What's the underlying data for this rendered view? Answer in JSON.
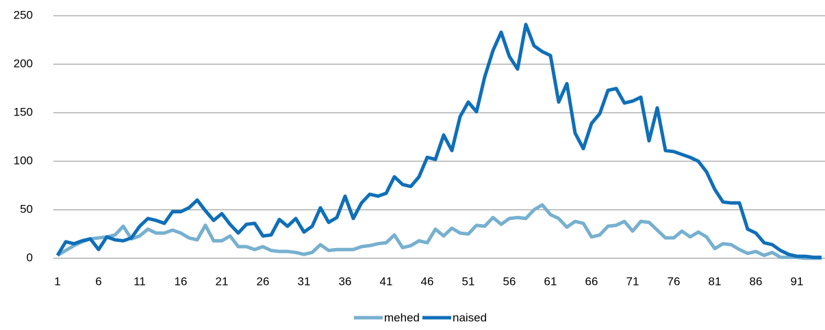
{
  "chart_data": {
    "type": "line",
    "x": [
      1,
      2,
      3,
      4,
      5,
      6,
      7,
      8,
      9,
      10,
      11,
      12,
      13,
      14,
      15,
      16,
      17,
      18,
      19,
      20,
      21,
      22,
      23,
      24,
      25,
      26,
      27,
      28,
      29,
      30,
      31,
      32,
      33,
      34,
      35,
      36,
      37,
      38,
      39,
      40,
      41,
      42,
      43,
      44,
      45,
      46,
      47,
      48,
      49,
      50,
      51,
      52,
      53,
      54,
      55,
      56,
      57,
      58,
      59,
      60,
      61,
      62,
      63,
      64,
      65,
      66,
      67,
      68,
      69,
      70,
      71,
      72,
      73,
      74,
      75,
      76,
      77,
      78,
      79,
      80,
      81,
      82,
      83,
      84,
      85,
      86,
      87,
      88,
      89,
      90,
      91,
      92,
      93,
      94
    ],
    "series": [
      {
        "name": "mehed",
        "color": "#77b0cf",
        "values": [
          3,
          8,
          13,
          17,
          20,
          21,
          22,
          24,
          33,
          20,
          23,
          30,
          26,
          26,
          29,
          26,
          21,
          19,
          34,
          18,
          18,
          23,
          12,
          12,
          9,
          12,
          8,
          7,
          7,
          6,
          4,
          6,
          14,
          8,
          9,
          9,
          9,
          12,
          13,
          15,
          16,
          24,
          11,
          13,
          18,
          16,
          30,
          23,
          31,
          26,
          25,
          34,
          33,
          42,
          35,
          41,
          42,
          41,
          50,
          55,
          45,
          41,
          32,
          38,
          36,
          22,
          24,
          33,
          34,
          38,
          28,
          38,
          37,
          29,
          21,
          21,
          28,
          22,
          27,
          22,
          10,
          15,
          14,
          9,
          5,
          7,
          3,
          6,
          1,
          1,
          1,
          0,
          0,
          0
        ]
      },
      {
        "name": "naised",
        "color": "#0f6fb8",
        "values": [
          3,
          17,
          15,
          18,
          20,
          9,
          22,
          19,
          18,
          21,
          33,
          41,
          39,
          36,
          48,
          48,
          52,
          60,
          49,
          39,
          46,
          35,
          26,
          35,
          36,
          23,
          24,
          40,
          33,
          41,
          27,
          33,
          52,
          37,
          42,
          64,
          41,
          57,
          66,
          64,
          67,
          84,
          76,
          74,
          84,
          104,
          102,
          127,
          111,
          146,
          161,
          151,
          187,
          214,
          233,
          208,
          195,
          241,
          219,
          213,
          209,
          161,
          180,
          129,
          113,
          139,
          149,
          173,
          175,
          160,
          162,
          166,
          121,
          155,
          111,
          110,
          107,
          104,
          100,
          89,
          71,
          58,
          57,
          57,
          30,
          26,
          16,
          14,
          8,
          4,
          2,
          2,
          1,
          1
        ]
      }
    ],
    "xlim": [
      1,
      94
    ],
    "xticks": [
      1,
      6,
      11,
      16,
      21,
      26,
      31,
      36,
      41,
      46,
      51,
      56,
      61,
      66,
      71,
      76,
      81,
      86,
      91
    ],
    "ylim": [
      0,
      250
    ],
    "yticks": [
      0,
      50,
      100,
      150,
      200,
      250
    ],
    "grid": true,
    "legend": "bottom"
  }
}
